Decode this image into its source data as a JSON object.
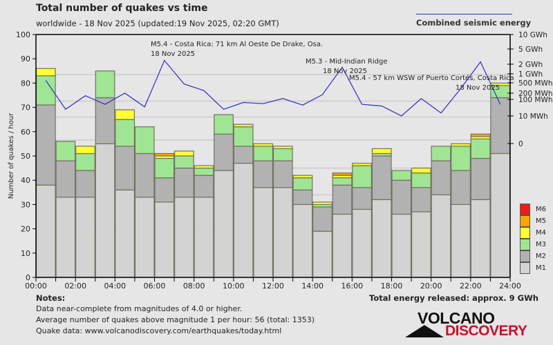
{
  "header": {
    "title": "Total number of quakes vs time",
    "subtitle": "worldwide - 18 Nov 2025 (updated:19 Nov 2025, 02:20 GMT)"
  },
  "energy_legend": {
    "label": "Combined seismic energy",
    "color": "#2e2ebf"
  },
  "footer": {
    "notes_title": "Notes:",
    "notes": [
      "Data near-complete from magnitudes of 4.0 or higher.",
      "Average number of quakes above magnitude 1 per hour: 56 (total: 1353)",
      "Quake data: www.volcanodiscovery.com/earthquakes/today.html"
    ],
    "total_energy": "Total energy released: approx. 9 GWh",
    "logo_top": "VOLCANO",
    "logo_bottom": "DISCOVERY"
  },
  "chart_data": {
    "type": "bar",
    "stacked": true,
    "title": "Total number of quakes vs time",
    "subtitle": "worldwide - 18 Nov 2025 (updated:19 Nov 2025, 02:20 GMT)",
    "xlabel": "",
    "ylabel": "Number of quakes / hour",
    "ylim": [
      0,
      100
    ],
    "yticks": [
      0,
      10,
      20,
      30,
      40,
      50,
      60,
      70,
      80,
      90,
      100
    ],
    "xticks": [
      "00:00",
      "02:00",
      "04:00",
      "06:00",
      "08:00",
      "10:00",
      "12:00",
      "14:00",
      "16:00",
      "18:00",
      "20:00",
      "22:00",
      "24:00"
    ],
    "categories": [
      "00",
      "01",
      "02",
      "03",
      "04",
      "05",
      "06",
      "07",
      "08",
      "09",
      "10",
      "11",
      "12",
      "13",
      "14",
      "15",
      "16",
      "17",
      "18",
      "19",
      "20",
      "21",
      "22",
      "23"
    ],
    "series": [
      {
        "name": "M1",
        "color": "#d3d3d3",
        "values": [
          38,
          33,
          33,
          55,
          36,
          33,
          31,
          33,
          33,
          44,
          47,
          37,
          37,
          30,
          19,
          26,
          28,
          32,
          26,
          27,
          34,
          30,
          32,
          51
        ]
      },
      {
        "name": "M2",
        "color": "#b2b2b2",
        "values": [
          33,
          15,
          11,
          19,
          18,
          18,
          10,
          12,
          9,
          15,
          7,
          11,
          11,
          6,
          10,
          12,
          9,
          18,
          14,
          10,
          14,
          14,
          17,
          23
        ]
      },
      {
        "name": "M3",
        "color": "#a0e594",
        "values": [
          12,
          8,
          7,
          11,
          11,
          11,
          8,
          5,
          3,
          8,
          8,
          6,
          5,
          5,
          1,
          3,
          9,
          1,
          4,
          6,
          6,
          10,
          8,
          5
        ]
      },
      {
        "name": "M4",
        "color": "#ffff33",
        "values": [
          3,
          0,
          3,
          0,
          4,
          0,
          1,
          2,
          1,
          0,
          1,
          1,
          1,
          1,
          1,
          1,
          1,
          2,
          0,
          2,
          0,
          1,
          1,
          1
        ]
      },
      {
        "name": "M5",
        "color": "#ffa500",
        "values": [
          0,
          0,
          0,
          0,
          0,
          0,
          1,
          0,
          0,
          0,
          0,
          0,
          0,
          0,
          0,
          1,
          0,
          0,
          0,
          0,
          0,
          0,
          1,
          0
        ]
      },
      {
        "name": "M6",
        "color": "#ee1c1c",
        "values": [
          0,
          0,
          0,
          0,
          0,
          0,
          0,
          0,
          0,
          0,
          0,
          0,
          0,
          0,
          0,
          0,
          0,
          0,
          0,
          0,
          0,
          0,
          0,
          0
        ]
      }
    ],
    "energy": {
      "name": "Combined seismic energy",
      "unit": "MWh",
      "axis_ticks": [
        "10 GWh",
        "5 GWh",
        "2 GWh",
        "1 GWh",
        "500 MWh",
        "200 MWh",
        "100 MWh",
        "10 MWh",
        "0"
      ],
      "values": [
        600,
        25,
        150,
        50,
        200,
        35,
        2500,
        450,
        250,
        25,
        65,
        55,
        110,
        45,
        170,
        1600,
        50,
        40,
        10,
        110,
        15,
        300,
        2300,
        50
      ]
    },
    "annotations": [
      {
        "hour": "06",
        "text": "M5.4 - Costa Rica: 71 km Al Oeste De Drake, Osa.",
        "date": "18 Nov 2025"
      },
      {
        "hour": "15",
        "text": "M5.3 - Mid-Indian Ridge",
        "date": "18 Nov 2025"
      },
      {
        "hour": "22",
        "text": "M5.4 - 57 km WSW of Puerto Cortés, Costa Rica",
        "date": "18 Nov 2025"
      }
    ],
    "legend": [
      "M6",
      "M5",
      "M4",
      "M3",
      "M2",
      "M1"
    ],
    "legend_position": "right",
    "grid": true
  }
}
